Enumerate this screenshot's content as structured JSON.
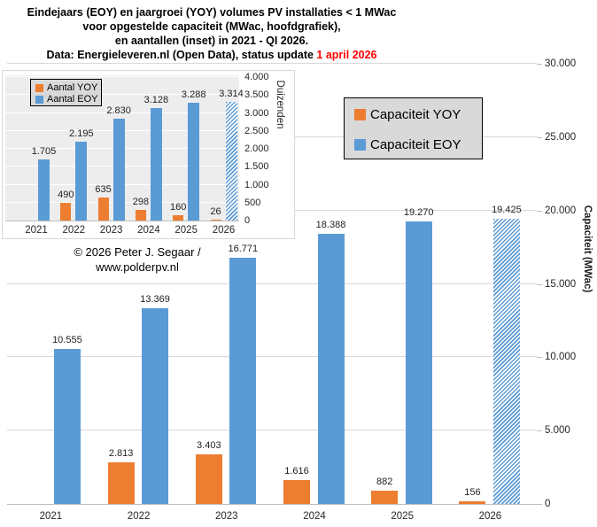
{
  "title": {
    "line1": "Eindejaars (EOY) en jaargroei (YOY) volumes PV installaties < 1 MWac",
    "line2": "voor opgestelde capaciteit (MWac, hoofdgrafiek),",
    "line3": "en aantallen (inset) in 2021 - QI 2026.",
    "line4_prefix": "Data: Energieleveren.nl (Open Data), status update ",
    "line4_highlight": "1 april 2026"
  },
  "copyright": {
    "line1": "© 2026 Peter J. Segaar /",
    "line2": "www.polderpv.nl"
  },
  "colors": {
    "yoy_orange": "#ED7D31",
    "eoy_blue": "#5B9BD5",
    "highlight_red": "#FF0000",
    "gridline": "#D9D9D9",
    "axis_line": "#BFBFBF",
    "legend_bg": "#D9D9D9",
    "inset_plot_bg": "#EDEDED"
  },
  "chart_data": [
    {
      "id": "main",
      "type": "bar",
      "categories": [
        "2021",
        "2022",
        "2023",
        "2024",
        "2025",
        "2026"
      ],
      "series": [
        {
          "name": "Capaciteit YOY",
          "color": "#ED7D31",
          "values": [
            null,
            2813,
            3403,
            1616,
            882,
            156
          ],
          "labels": [
            "",
            "2.813",
            "3.403",
            "1.616",
            "882",
            "156"
          ],
          "hatched_indices": []
        },
        {
          "name": "Capaciteit EOY",
          "color": "#5B9BD5",
          "values": [
            10555,
            13369,
            16771,
            18388,
            19270,
            19425
          ],
          "labels": [
            "10.555",
            "13.369",
            "16.771",
            "18.388",
            "19.270",
            "19.425"
          ],
          "hatched_indices": [
            5
          ]
        }
      ],
      "xlabel": "",
      "ylabel": "Capaciteit (MWac)",
      "ylim": [
        0,
        30000
      ],
      "ytick_step": 5000,
      "yticks": [
        "0",
        "5.000",
        "10.000",
        "15.000",
        "20.000",
        "25.000",
        "30.000"
      ],
      "grid": true,
      "legend_position": "inside-top-right"
    },
    {
      "id": "inset",
      "type": "bar",
      "categories": [
        "2021",
        "2022",
        "2023",
        "2024",
        "2025",
        "2026"
      ],
      "series": [
        {
          "name": "Aantal YOY",
          "color": "#ED7D31",
          "values": [
            null,
            490,
            635,
            298,
            160,
            26
          ],
          "labels": [
            "",
            "490",
            "635",
            "298",
            "160",
            "26"
          ],
          "hatched_indices": []
        },
        {
          "name": "Aantal EOY",
          "color": "#5B9BD5",
          "values": [
            1705,
            2195,
            2830,
            3128,
            3288,
            3314
          ],
          "labels": [
            "1.705",
            "2.195",
            "2.830",
            "3.128",
            "3.288",
            "3.314"
          ],
          "hatched_indices": [
            5
          ]
        }
      ],
      "xlabel": "",
      "ylabel": "Duizenden",
      "ylim": [
        0,
        4000
      ],
      "ytick_step": 500,
      "yticks": [
        "0",
        "500",
        "1.000",
        "1.500",
        "2.000",
        "2.500",
        "3.000",
        "3.500",
        "4.000"
      ],
      "grid": true,
      "legend_position": "inside-top-left"
    }
  ]
}
